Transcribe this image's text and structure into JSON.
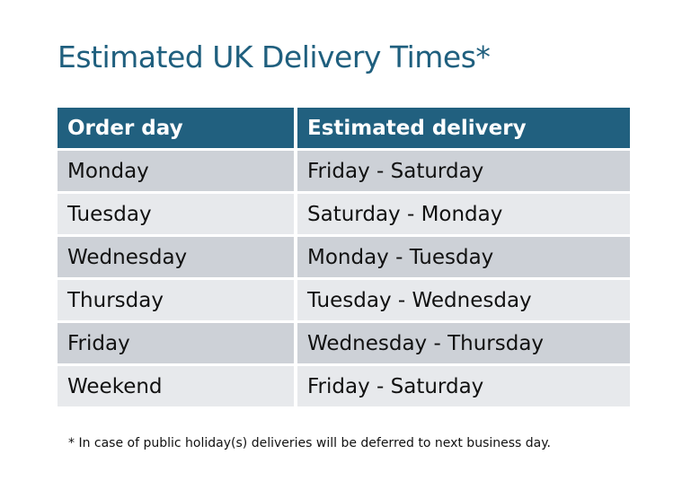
{
  "title": "Estimated UK Delivery Times*",
  "table": {
    "headers": [
      "Order day",
      "Estimated delivery"
    ],
    "rows": [
      [
        "Monday",
        "Friday - Saturday"
      ],
      [
        "Tuesday",
        "Saturday - Monday"
      ],
      [
        "Wednesday",
        "Monday - Tuesday"
      ],
      [
        "Thursday",
        "Tuesday - Wednesday"
      ],
      [
        "Friday",
        "Wednesday - Thursday"
      ],
      [
        "Weekend",
        "Friday - Saturday"
      ]
    ]
  },
  "footnote": "* In case of public holiday(s) deliveries will be deferred to next business day.",
  "colors": {
    "accent": "#21607f",
    "row_dark": "#cdd1d7",
    "row_light": "#e7e9ec"
  }
}
